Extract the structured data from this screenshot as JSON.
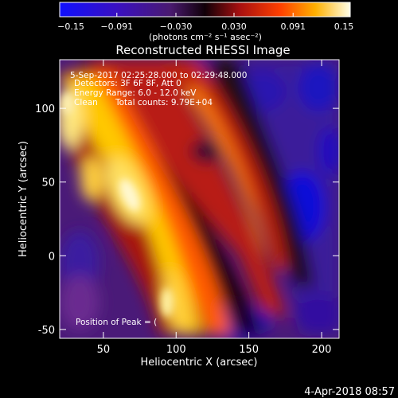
{
  "colorbar": {
    "ticks": [
      -0.15,
      -0.091,
      -0.03,
      0.03,
      0.091,
      0.15
    ],
    "tick_labels": [
      "−0.15",
      "−0.091",
      "−0.030",
      "0.030",
      "0.091",
      "0.15"
    ],
    "units_label": "(photons cm⁻² s⁻¹ asec⁻²)"
  },
  "chart_data": {
    "type": "heatmap",
    "title": "Reconstructed RHESSI Image",
    "xlabel": "Heliocentric X (arcsec)",
    "ylabel": "Heliocentric Y (arcsec)",
    "xlim": [
      20,
      212
    ],
    "ylim": [
      -56,
      133
    ],
    "x_ticks": [
      50,
      100,
      150,
      200
    ],
    "y_ticks": [
      -50,
      0,
      50,
      100
    ],
    "zlim": [
      -0.15,
      0.15
    ],
    "colormap": "blue-purple-red-yellow-white",
    "peak_label": "Position of Peak = ("
  },
  "annotations": {
    "time_range": "5-Sep-2017 02:25:28.000 to 02:29:48.000",
    "detectors": "Detectors: 3F 6F 8F, Att 0",
    "energy": "Energy Range: 6.0 - 12.0 keV",
    "clean": "Clean",
    "total_counts": "Total counts: 9.79E+04"
  },
  "footer": {
    "date": "4-Apr-2018 08:57"
  },
  "colors": {
    "background": "#000000",
    "text": "#ffffff"
  }
}
